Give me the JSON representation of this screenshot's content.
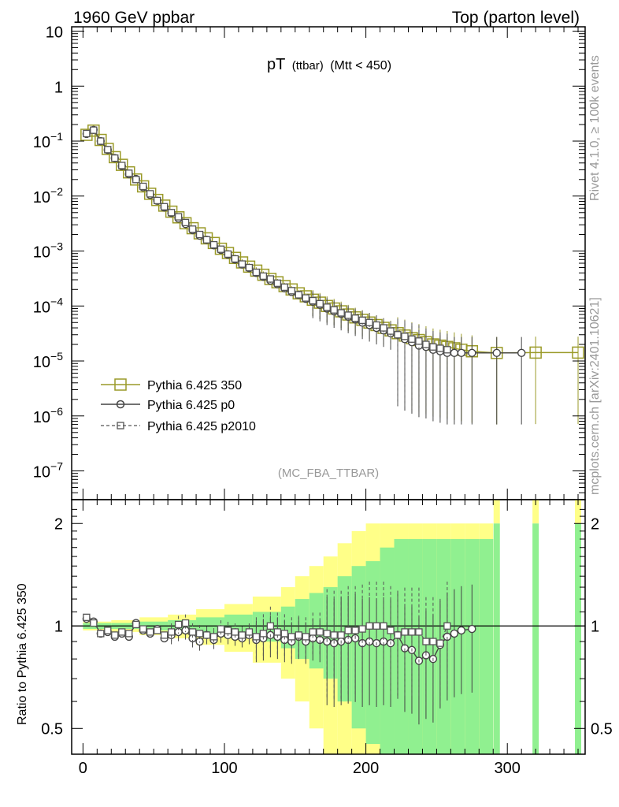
{
  "header": {
    "left": "1960 GeV ppbar",
    "right": "Top (parton level)"
  },
  "plot_title": {
    "main": "pT",
    "sub": "(ttbar)",
    "cut": "(Mtt < 450)"
  },
  "side_labels": {
    "rivet": "Rivet 4.1.0, ≥ 100k events",
    "mcplots": "mcplots.cern.ch [arXiv:2401.10621]"
  },
  "analysis_tag": "(MC_FBA_TTBAR)",
  "legend": [
    {
      "label": "Pythia 6.425 350",
      "color": "#9a9a28",
      "marker": "square-large",
      "line": "solid"
    },
    {
      "label": "Pythia 6.425 p0",
      "color": "#444444",
      "marker": "circle",
      "line": "solid"
    },
    {
      "label": "Pythia 6.425 p2010",
      "color": "#555555",
      "marker": "square-small",
      "line": "dashed"
    }
  ],
  "colors": {
    "band_inner": "#90f090",
    "band_outer": "#ffff88",
    "olive": "#9a9a28",
    "dark": "#444444"
  },
  "chart_data": [
    {
      "type": "line",
      "name": "main",
      "yscale": "log",
      "xlim": [
        -8,
        355
      ],
      "ylim": [
        3e-08,
        12
      ],
      "y_ticks": [
        {
          "value": 10,
          "label": "10"
        },
        {
          "value": 1,
          "label": "1"
        },
        {
          "value": 0.1,
          "label": "10",
          "exp": "−1"
        },
        {
          "value": 0.01,
          "label": "10",
          "exp": "−2"
        },
        {
          "value": 0.001,
          "label": "10",
          "exp": "−3"
        },
        {
          "value": 0.0001,
          "label": "10",
          "exp": "−4"
        },
        {
          "value": 1e-05,
          "label": "10",
          "exp": "−5"
        },
        {
          "value": 1e-06,
          "label": "10",
          "exp": "−6"
        },
        {
          "value": 1e-07,
          "label": "10",
          "exp": "−7"
        }
      ],
      "series": [
        {
          "name": "Pythia 6.425 350",
          "x": [
            2.5,
            7.5,
            12.5,
            17.5,
            22.5,
            27.5,
            32.5,
            37.5,
            42.5,
            47.5,
            52.5,
            57.5,
            62.5,
            67.5,
            72.5,
            77.5,
            82.5,
            87.5,
            92.5,
            97.5,
            102.5,
            107.5,
            112.5,
            117.5,
            122.5,
            127.5,
            132.5,
            137.5,
            142.5,
            147.5,
            152.5,
            157.5,
            162.5,
            167.5,
            172.5,
            177.5,
            182.5,
            187.5,
            192.5,
            197.5,
            202.5,
            207.5,
            212.5,
            217.5,
            222.5,
            227.5,
            232.5,
            237.5,
            242.5,
            247.5,
            252.5,
            257.5,
            262.5,
            267.5,
            275,
            292.5,
            320,
            350
          ],
          "y": [
            0.13,
            0.155,
            0.105,
            0.072,
            0.051,
            0.037,
            0.027,
            0.02,
            0.015,
            0.011,
            0.0085,
            0.0067,
            0.0052,
            0.0041,
            0.0032,
            0.0026,
            0.0021,
            0.0017,
            0.0014,
            0.0011,
            0.00092,
            0.00075,
            0.00062,
            0.00052,
            0.00044,
            0.00037,
            0.00031,
            0.00027,
            0.00023,
            0.0002,
            0.00017,
            0.00015,
            0.00013,
            0.000115,
            0.0001,
            9e-05,
            8e-05,
            7e-05,
            6.2e-05,
            5.6e-05,
            5e-05,
            4.5e-05,
            4e-05,
            3.6e-05,
            3.2e-05,
            2.9e-05,
            2.6e-05,
            2.4e-05,
            2.2e-05,
            2e-05,
            1.9e-05,
            1.8e-05,
            1.7e-05,
            1.6e-05,
            1.5e-05,
            1.4e-05,
            1.42e-05,
            1.42e-05
          ]
        },
        {
          "name": "Pythia 6.425 p0",
          "x": [
            2.5,
            7.5,
            12.5,
            17.5,
            22.5,
            27.5,
            32.5,
            37.5,
            42.5,
            47.5,
            52.5,
            57.5,
            62.5,
            67.5,
            72.5,
            77.5,
            82.5,
            87.5,
            92.5,
            97.5,
            102.5,
            107.5,
            112.5,
            117.5,
            122.5,
            127.5,
            132.5,
            137.5,
            142.5,
            147.5,
            152.5,
            157.5,
            162.5,
            167.5,
            172.5,
            177.5,
            182.5,
            187.5,
            192.5,
            197.5,
            202.5,
            207.5,
            212.5,
            217.5,
            222.5,
            227.5,
            232.5,
            237.5,
            242.5,
            247.5,
            252.5,
            257.5,
            262.5,
            267.5,
            275,
            292.5,
            310
          ],
          "y": [
            0.135,
            0.16,
            0.1,
            0.069,
            0.049,
            0.035,
            0.025,
            0.0205,
            0.0145,
            0.0105,
            0.0082,
            0.0062,
            0.0049,
            0.0039,
            0.0031,
            0.0024,
            0.0019,
            0.0016,
            0.00127,
            0.00105,
            0.00086,
            0.0007,
            0.00057,
            0.00049,
            0.0004,
            0.00034,
            0.00029,
            0.00025,
            0.00021,
            0.00018,
            0.00016,
            0.000135,
            0.00012,
            0.000105,
            9e-05,
            8e-05,
            7.2e-05,
            6.4e-05,
            5.7e-05,
            5e-05,
            4.5e-05,
            4e-05,
            3.6e-05,
            3.2e-05,
            3e-05,
            2.5e-05,
            2.2e-05,
            1.9e-05,
            1.8e-05,
            1.6e-05,
            1.5e-05,
            1.4e-05,
            1.4e-05,
            1.4e-05,
            1.4e-05,
            1.4e-05,
            1.4e-05
          ]
        },
        {
          "name": "Pythia 6.425 p2010",
          "x": [
            2.5,
            7.5,
            12.5,
            17.5,
            22.5,
            27.5,
            32.5,
            37.5,
            42.5,
            47.5,
            52.5,
            57.5,
            62.5,
            67.5,
            72.5,
            77.5,
            82.5,
            87.5,
            92.5,
            97.5,
            102.5,
            107.5,
            112.5,
            117.5,
            122.5,
            127.5,
            132.5,
            137.5,
            142.5,
            147.5,
            152.5,
            157.5,
            162.5,
            167.5,
            172.5,
            177.5,
            182.5,
            187.5,
            192.5,
            197.5,
            202.5,
            207.5,
            212.5,
            217.5,
            222.5,
            227.5,
            232.5,
            237.5,
            242.5,
            247.5,
            252.5,
            257.5
          ],
          "y": [
            0.137,
            0.158,
            0.1,
            0.07,
            0.049,
            0.036,
            0.026,
            0.02,
            0.015,
            0.011,
            0.0083,
            0.0064,
            0.005,
            0.0042,
            0.0033,
            0.0025,
            0.002,
            0.0016,
            0.0013,
            0.00108,
            0.00088,
            0.00072,
            0.00058,
            0.0005,
            0.00041,
            0.00035,
            0.00031,
            0.00026,
            0.00022,
            0.00019,
            0.00016,
            0.00014,
            0.000125,
            0.00011,
            9.5e-05,
            8.5e-05,
            7.5e-05,
            6.8e-05,
            6e-05,
            5.5e-05,
            5e-05,
            4.5e-05,
            4e-05,
            3.5e-05,
            3e-05,
            2.8e-05,
            2.5e-05,
            2.3e-05,
            2e-05,
            1.8e-05,
            1.7e-05,
            1.6e-05
          ]
        }
      ]
    },
    {
      "type": "line",
      "name": "ratio",
      "ylabel": "Ratio to Pythia 6.425 350",
      "yscale": "log",
      "xlim": [
        -8,
        355
      ],
      "ylim": [
        0.42,
        2.35
      ],
      "x_ticks": [
        0,
        100,
        200,
        300
      ],
      "y_ticks": [
        {
          "value": 0.5,
          "label": "0.5"
        },
        {
          "value": 1,
          "label": "1"
        },
        {
          "value": 2,
          "label": "2"
        }
      ],
      "band": {
        "x": [
          0,
          20,
          40,
          60,
          80,
          100,
          120,
          140,
          150,
          160,
          170,
          180,
          190,
          200,
          210,
          220,
          230,
          240,
          250,
          260,
          270,
          280
        ],
        "inner": [
          0.02,
          0.02,
          0.03,
          0.04,
          0.06,
          0.08,
          0.1,
          0.14,
          0.2,
          0.25,
          0.3,
          0.4,
          0.5,
          0.55,
          0.7,
          0.8,
          0.8,
          0.8,
          0.8,
          0.8,
          0.8,
          0.8
        ],
        "outer": [
          0.03,
          0.04,
          0.06,
          0.08,
          0.12,
          0.16,
          0.22,
          0.3,
          0.4,
          0.5,
          0.6,
          0.75,
          0.9,
          1,
          1,
          1,
          1,
          1,
          1,
          1,
          1,
          1
        ]
      },
      "series": [
        {
          "name": "Pythia 6.425 p0",
          "x": [
            2.5,
            7.5,
            12.5,
            17.5,
            22.5,
            27.5,
            32.5,
            37.5,
            42.5,
            47.5,
            52.5,
            57.5,
            62.5,
            67.5,
            72.5,
            77.5,
            82.5,
            87.5,
            92.5,
            97.5,
            102.5,
            107.5,
            112.5,
            117.5,
            122.5,
            127.5,
            132.5,
            137.5,
            142.5,
            147.5,
            152.5,
            157.5,
            162.5,
            167.5,
            172.5,
            177.5,
            182.5,
            187.5,
            192.5,
            197.5,
            202.5,
            207.5,
            212.5,
            217.5,
            222.5,
            227.5,
            232.5,
            237.5,
            242.5,
            247.5,
            252.5,
            257.5,
            262.5,
            267.5,
            275
          ],
          "y": [
            1.05,
            1.03,
            0.95,
            0.96,
            0.93,
            0.95,
            0.93,
            1.02,
            0.97,
            0.95,
            0.98,
            0.92,
            0.94,
            0.96,
            0.97,
            0.92,
            0.9,
            0.94,
            0.91,
            0.95,
            0.94,
            0.93,
            0.92,
            0.94,
            0.91,
            0.92,
            0.94,
            0.93,
            0.91,
            0.9,
            0.93,
            0.9,
            0.92,
            0.91,
            0.9,
            0.89,
            0.9,
            0.91,
            0.92,
            0.89,
            0.9,
            0.89,
            0.9,
            0.89,
            0.94,
            0.86,
            0.85,
            0.79,
            0.82,
            0.8,
            0.88,
            0.93,
            0.95,
            0.97,
            0.98
          ]
        },
        {
          "name": "Pythia 6.425 p2010",
          "x": [
            2.5,
            7.5,
            12.5,
            17.5,
            22.5,
            27.5,
            32.5,
            37.5,
            42.5,
            47.5,
            52.5,
            57.5,
            62.5,
            67.5,
            72.5,
            77.5,
            82.5,
            87.5,
            92.5,
            97.5,
            102.5,
            107.5,
            112.5,
            117.5,
            122.5,
            127.5,
            132.5,
            137.5,
            142.5,
            147.5,
            152.5,
            157.5,
            162.5,
            167.5,
            172.5,
            177.5,
            182.5,
            187.5,
            192.5,
            197.5,
            202.5,
            207.5,
            212.5,
            217.5,
            222.5,
            227.5,
            232.5,
            237.5,
            242.5,
            247.5,
            252.5,
            257.5
          ],
          "y": [
            1.06,
            1.02,
            0.95,
            0.97,
            0.94,
            0.96,
            0.95,
            1.01,
            0.98,
            0.96,
            0.97,
            0.94,
            0.96,
            1.01,
            1.02,
            0.96,
            0.95,
            0.94,
            0.93,
            0.98,
            0.97,
            0.96,
            0.94,
            0.96,
            0.93,
            0.95,
            1.0,
            0.96,
            0.95,
            0.93,
            0.94,
            0.93,
            0.96,
            0.96,
            0.95,
            0.94,
            0.94,
            0.97,
            0.97,
            0.98,
            1.0,
            1.0,
            1.0,
            0.97,
            0.94,
            0.96,
            0.96,
            0.96,
            0.9,
            0.9,
            0.89,
            1.0
          ]
        }
      ]
    }
  ]
}
